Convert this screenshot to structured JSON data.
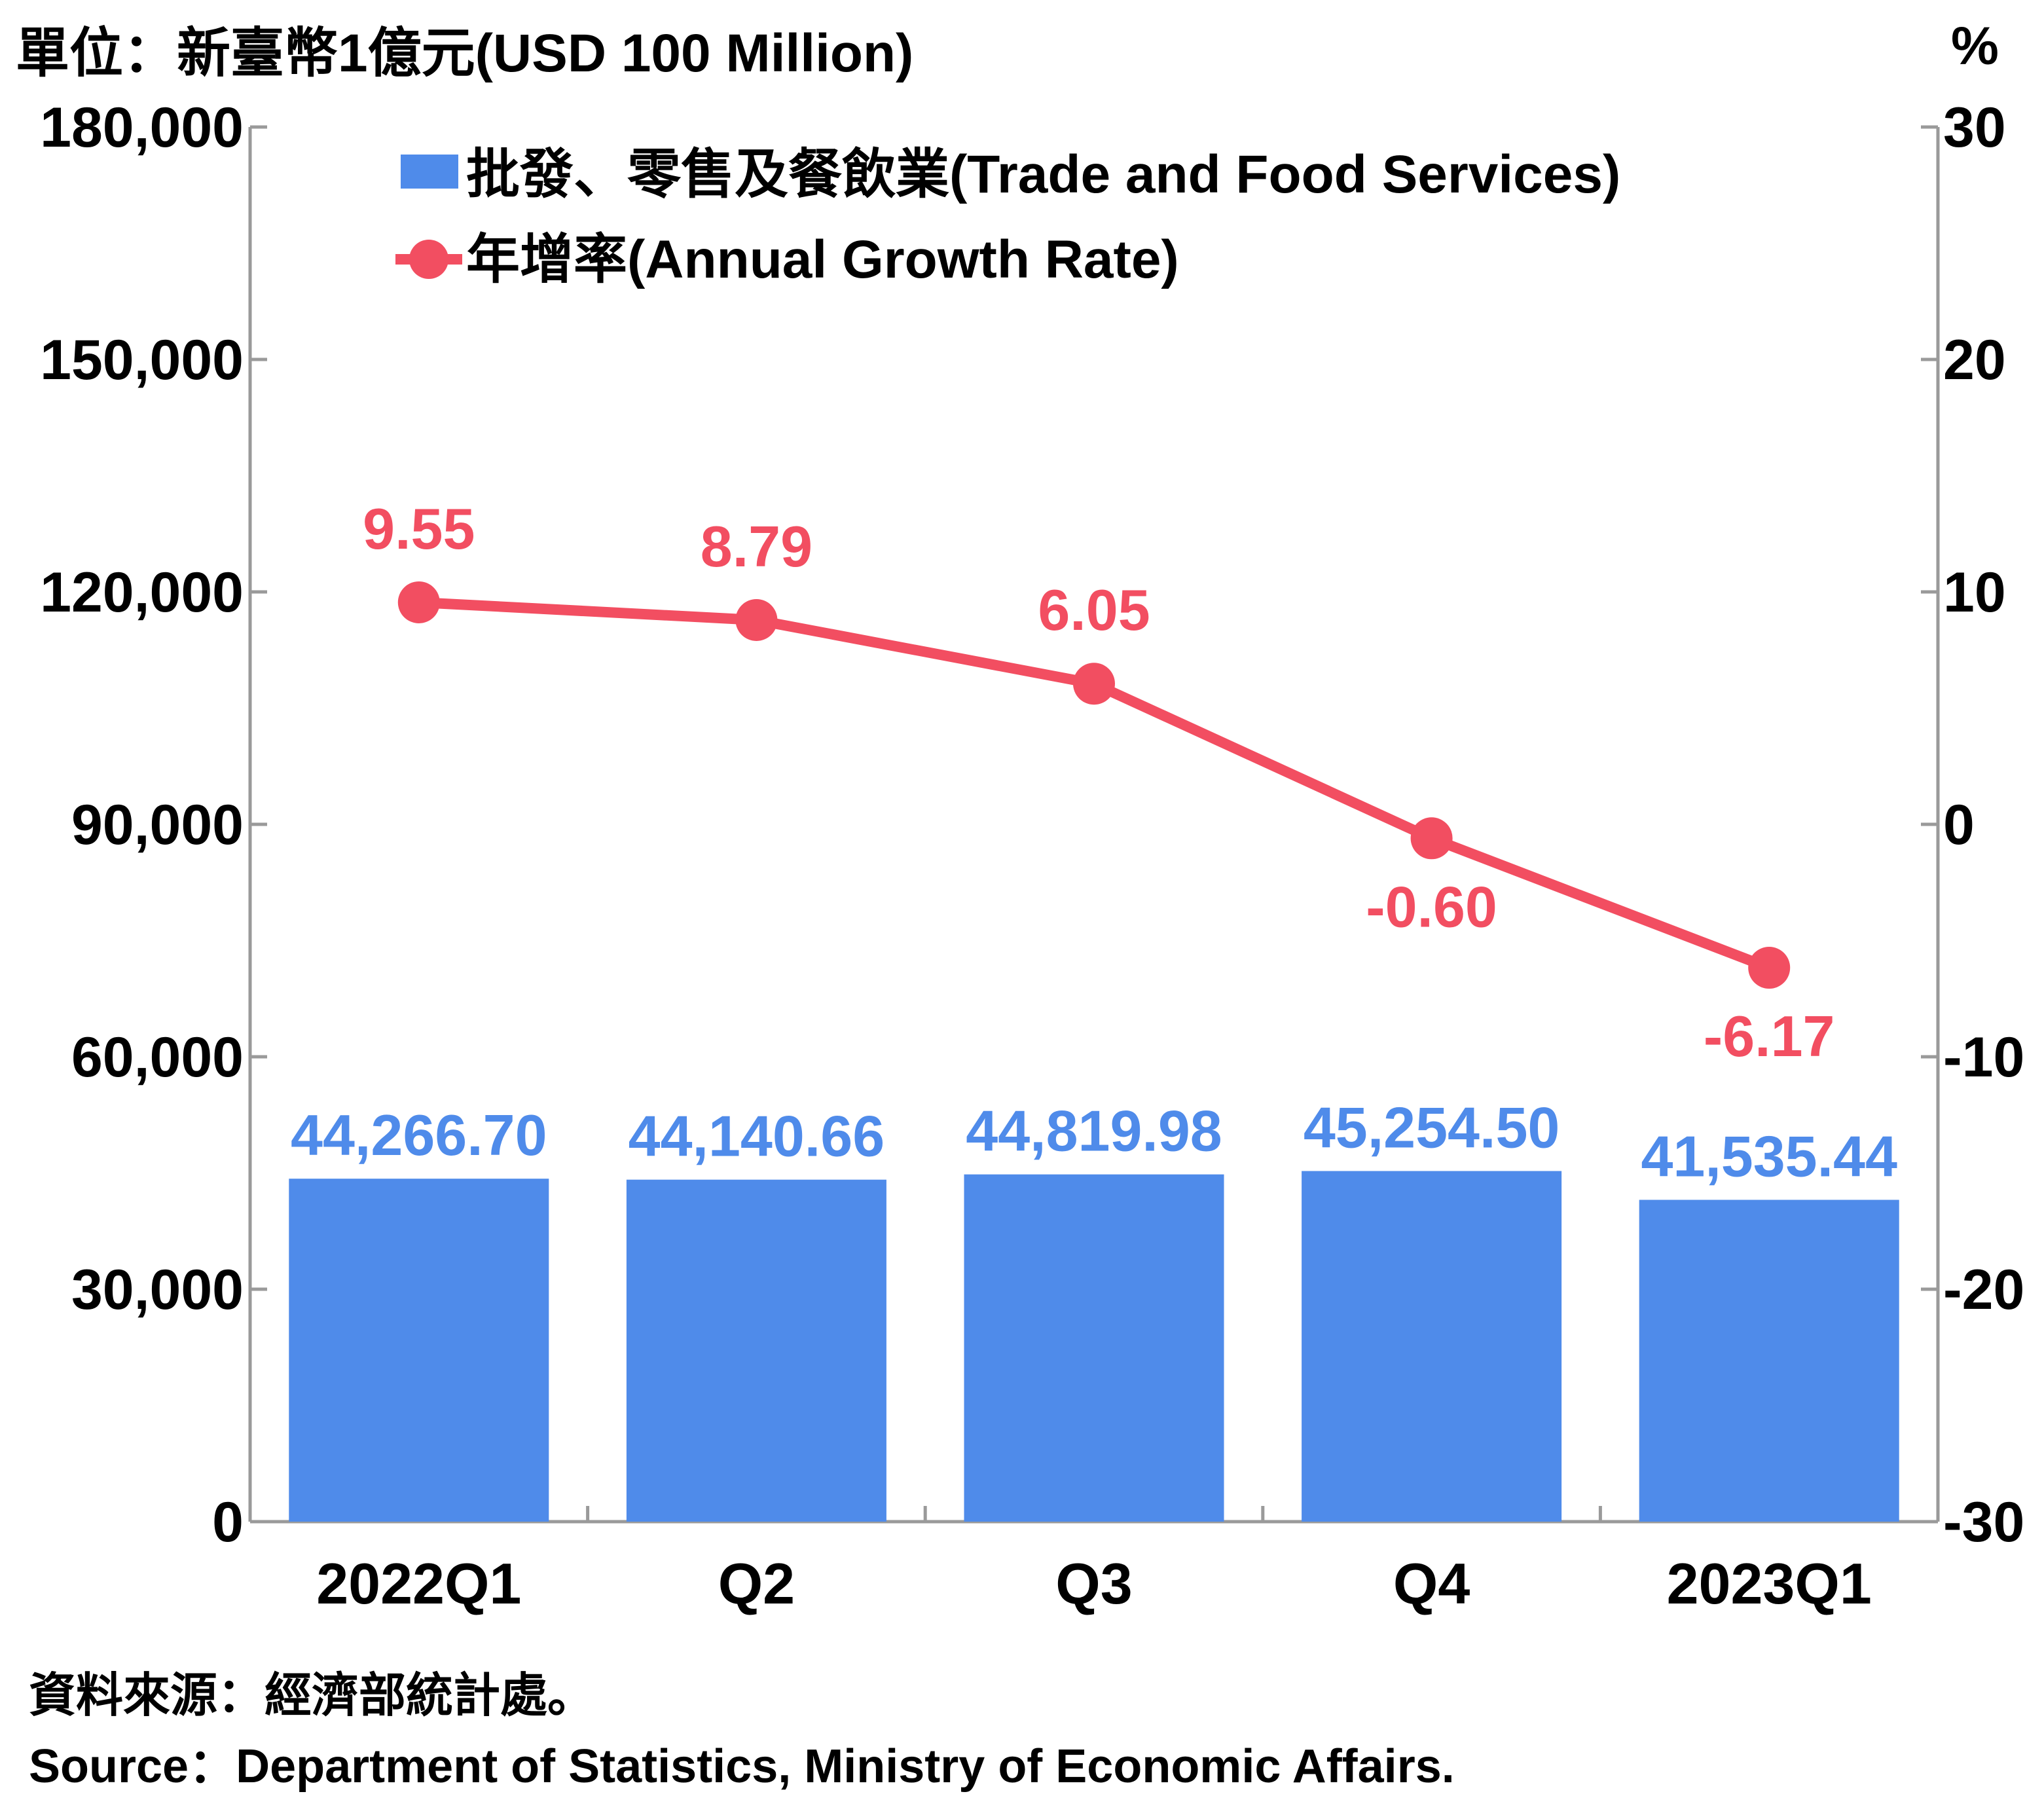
{
  "unit_left": "單位：新臺幣1億元(USD 100 Million)",
  "unit_right": "%",
  "source_zh": "資料來源：經濟部統計處。",
  "source_en": "Source：Department of Statistics, Ministry of Economic Affairs.",
  "chart_data": {
    "type": "bar",
    "categories": [
      "2022Q1",
      "Q2",
      "Q3",
      "Q4",
      "2023Q1"
    ],
    "series": [
      {
        "name": "批發、零售及餐飲業(Trade and Food Services)",
        "type": "bar",
        "axis": "left",
        "color": "#4F8BEA",
        "label_color": "#4F8BEA",
        "values": [
          44266.7,
          44140.66,
          44819.98,
          45254.5,
          41535.44
        ],
        "labels": [
          "44,266.70",
          "44,140.66",
          "44,819.98",
          "45,254.50",
          "41,535.44"
        ]
      },
      {
        "name": "年增率(Annual Growth Rate)",
        "type": "line",
        "axis": "right",
        "color": "#F24E61",
        "label_color": "#F24E61",
        "values": [
          9.55,
          8.79,
          6.05,
          -0.6,
          -6.17
        ],
        "labels": [
          "9.55",
          "8.79",
          "6.05",
          "-0.60",
          "-6.17"
        ]
      }
    ],
    "y_left": {
      "ylim": [
        0,
        180000
      ],
      "ticks": [
        0,
        30000,
        60000,
        90000,
        120000,
        150000,
        180000
      ],
      "tick_labels": [
        "0",
        "30,000",
        "60,000",
        "90,000",
        "120,000",
        "150,000",
        "180,000"
      ]
    },
    "y_right": {
      "ylim": [
        -30,
        30
      ],
      "ticks": [
        -30,
        -20,
        -10,
        0,
        10,
        20,
        30
      ],
      "tick_labels": [
        "-30",
        "-20",
        "-10",
        "0",
        "10",
        "20",
        "30"
      ]
    },
    "legend_position": "top-center",
    "grid": false
  }
}
